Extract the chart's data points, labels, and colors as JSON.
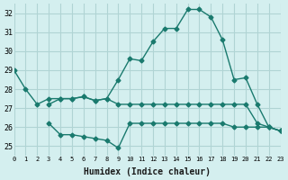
{
  "xlabel": "Humidex (Indice chaleur)",
  "bg_color": "#d4efef",
  "grid_color": "#b0d4d4",
  "line_color": "#1a7a6e",
  "xlim": [
    0,
    23
  ],
  "ylim": [
    24.5,
    32.5
  ],
  "yticks": [
    25,
    26,
    27,
    28,
    29,
    30,
    31,
    32
  ],
  "xticks": [
    0,
    1,
    2,
    3,
    4,
    5,
    6,
    7,
    8,
    9,
    10,
    11,
    12,
    13,
    14,
    15,
    16,
    17,
    18,
    19,
    20,
    21,
    22,
    23
  ],
  "lines": [
    {
      "x": [
        0,
        1,
        2,
        3,
        4,
        5,
        6,
        7,
        8,
        9,
        10,
        11,
        12,
        13,
        14,
        15,
        16,
        17,
        18,
        19,
        20,
        21,
        22,
        23
      ],
      "y": [
        29.0,
        28.0,
        27.2,
        27.5,
        27.5,
        27.5,
        27.6,
        27.4,
        27.5,
        28.5,
        29.6,
        29.5,
        30.5,
        31.2,
        31.2,
        32.2,
        32.2,
        31.8,
        30.6,
        28.5,
        28.6,
        27.2,
        26.0,
        25.8
      ]
    },
    {
      "x": [
        3,
        4,
        5,
        6,
        7,
        8,
        9,
        10,
        11,
        12,
        13,
        14,
        15,
        16,
        17,
        18,
        19,
        20,
        21,
        22,
        23
      ],
      "y": [
        27.2,
        27.5,
        27.5,
        27.6,
        27.4,
        27.5,
        27.2,
        27.2,
        27.2,
        27.2,
        27.2,
        27.2,
        27.2,
        27.2,
        27.2,
        27.2,
        27.2,
        27.2,
        26.2,
        26.0,
        25.8
      ]
    },
    {
      "x": [
        3,
        4,
        5,
        6,
        7,
        8,
        9,
        10,
        11,
        12,
        13,
        14,
        15,
        16,
        17,
        18,
        19,
        20,
        21,
        22,
        23
      ],
      "y": [
        26.2,
        25.6,
        25.6,
        25.5,
        25.4,
        25.3,
        24.9,
        26.2,
        26.2,
        26.2,
        26.2,
        26.2,
        26.2,
        26.2,
        26.2,
        26.2,
        26.0,
        26.0,
        26.0,
        26.0,
        25.8
      ]
    }
  ]
}
